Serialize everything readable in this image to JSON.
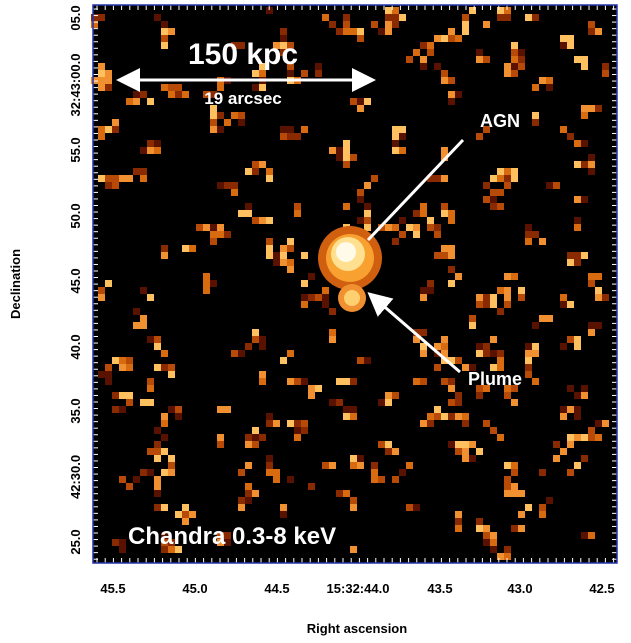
{
  "axes": {
    "x_label": "Right ascension",
    "y_label": "Declination",
    "x_ticks": [
      "45.5",
      "45.0",
      "44.5",
      "15:32:44.0",
      "43.5",
      "43.0",
      "42.5"
    ],
    "y_ticks": [
      "05.0",
      "32:43:00.0",
      "55.0",
      "50.0",
      "45.0",
      "40.0",
      "35.0",
      "42:30.0",
      "25.0"
    ]
  },
  "annotations": {
    "scale": "150 kpc",
    "scale_sub": "19 arcsec",
    "agn": "AGN",
    "plume": "Plume",
    "instrument": "Chandra 0.3-8 keV"
  }
}
